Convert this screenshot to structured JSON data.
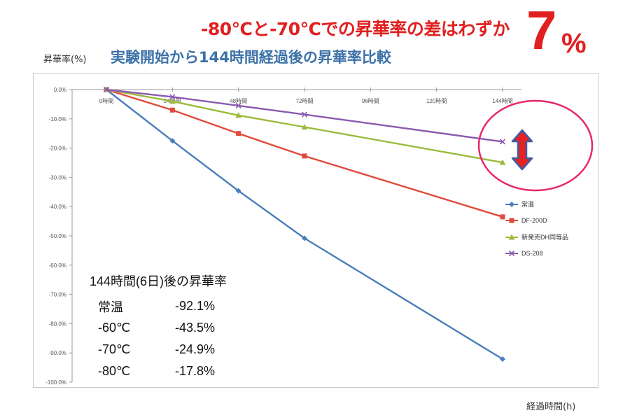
{
  "headline": "-80℃と-70℃での昇華率の差はわずか",
  "headline_big_number": "7",
  "headline_big_unit": "%",
  "subtitle": "実験開始から144時間経過後の昇華率比較",
  "colors": {
    "accent_red": "#e02020",
    "subtitle_blue": "#3c72a8",
    "highlight_circle": "#e8286e",
    "arrow_red": "#e52222",
    "arrow_blue": "#3a5fa8"
  },
  "summary_table": {
    "title": "144時間(6日)後の昇華率",
    "rows": [
      {
        "label": "常温",
        "value": "-92.1%"
      },
      {
        "label": "-60℃",
        "value": "-43.5%"
      },
      {
        "label": "-70℃",
        "value": "-24.9%"
      },
      {
        "label": "-80℃",
        "value": "-17.8%"
      }
    ]
  },
  "chart_data": {
    "type": "line",
    "ylabel": "昇華率(%)",
    "xlabel": "経過時間(h)",
    "x_categories": [
      "0時間",
      "24時間",
      "48時間",
      "72時間",
      "96時間",
      "120時間",
      "144時間"
    ],
    "x_hours": [
      0,
      24,
      48,
      72,
      96,
      120,
      144
    ],
    "ylim": [
      -100,
      0
    ],
    "y_ticks": [
      0,
      -10,
      -20,
      -30,
      -40,
      -50,
      -60,
      -70,
      -80,
      -90,
      -100
    ],
    "y_tick_labels": [
      "0.0%",
      "-10.0%",
      "-20.0%",
      "-30.0%",
      "-40.0%",
      "-50.0%",
      "-60.0%",
      "-70.0%",
      "-80.0%",
      "-90.0%",
      "-100.0%"
    ],
    "legend_position": "right",
    "series": [
      {
        "name": "常温",
        "color": "#4a7ebb",
        "marker": "diamond",
        "x": [
          0,
          24,
          48,
          72,
          144
        ],
        "values": [
          0,
          -17.5,
          -34.6,
          -50.8,
          -92.1
        ]
      },
      {
        "name": "DF-200D",
        "color": "#e04a3c",
        "marker": "square",
        "x": [
          0,
          24,
          48,
          72,
          144
        ],
        "values": [
          0,
          -7.0,
          -15.0,
          -22.7,
          -43.5
        ]
      },
      {
        "name": "新発売DH同等品",
        "color": "#9bbb3c",
        "marker": "triangle",
        "x": [
          0,
          24,
          48,
          72,
          144
        ],
        "values": [
          0,
          -4.0,
          -8.8,
          -12.8,
          -24.9
        ]
      },
      {
        "name": "DS-208",
        "color": "#8a5ab0",
        "marker": "x",
        "x": [
          0,
          24,
          48,
          72,
          144
        ],
        "values": [
          0,
          -2.5,
          -5.5,
          -8.5,
          -17.8
        ]
      }
    ]
  }
}
